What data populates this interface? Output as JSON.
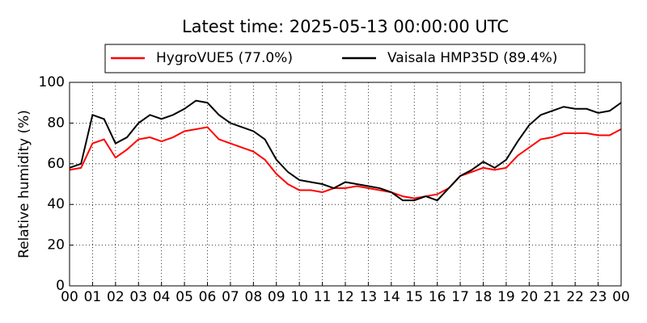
{
  "chart_data": {
    "type": "line",
    "title": "Latest time: 2025-05-13 00:00:00 UTC",
    "y_label": "Relative humidity (%)",
    "x": [
      0,
      0.5,
      1,
      1.5,
      2,
      2.5,
      3,
      3.5,
      4,
      4.5,
      5,
      5.5,
      6,
      6.5,
      7,
      7.5,
      8,
      8.5,
      9,
      9.5,
      10,
      10.5,
      11,
      11.5,
      12,
      12.5,
      13,
      13.5,
      14,
      14.5,
      15,
      15.5,
      16,
      16.5,
      17,
      17.5,
      18,
      18.5,
      19,
      19.5,
      20,
      20.5,
      21,
      21.5,
      22,
      22.5,
      23,
      23.5,
      24
    ],
    "series": [
      {
        "name": "HygroVUE5 (77.0%)",
        "color": "#ff0000",
        "values": [
          57,
          58,
          70,
          72,
          63,
          67,
          72,
          73,
          71,
          73,
          76,
          77,
          78,
          72,
          70,
          68,
          66,
          62,
          55,
          50,
          47,
          47,
          46,
          48,
          48,
          49,
          48,
          47,
          46,
          44,
          43,
          44,
          45,
          48,
          54,
          56,
          58,
          57,
          58,
          64,
          68,
          72,
          73,
          75,
          75,
          75,
          74,
          74,
          77
        ]
      },
      {
        "name": "Vaisala HMP35D (89.4%)",
        "color": "#000000",
        "values": [
          58,
          60,
          84,
          82,
          70,
          73,
          80,
          84,
          82,
          84,
          87,
          91,
          90,
          84,
          80,
          78,
          76,
          72,
          62,
          56,
          52,
          51,
          50,
          48,
          51,
          50,
          49,
          48,
          46,
          42,
          42,
          44,
          42,
          48,
          54,
          57,
          61,
          58,
          62,
          71,
          79,
          84,
          86,
          88,
          87,
          87,
          85,
          86,
          90
        ]
      }
    ],
    "xlim": [
      0,
      24
    ],
    "ylim": [
      0,
      100
    ],
    "xticks": [
      {
        "value": 0,
        "label": "00"
      },
      {
        "value": 1,
        "label": "01"
      },
      {
        "value": 2,
        "label": "02"
      },
      {
        "value": 3,
        "label": "03"
      },
      {
        "value": 4,
        "label": "04"
      },
      {
        "value": 5,
        "label": "05"
      },
      {
        "value": 6,
        "label": "06"
      },
      {
        "value": 7,
        "label": "07"
      },
      {
        "value": 8,
        "label": "08"
      },
      {
        "value": 9,
        "label": "09"
      },
      {
        "value": 10,
        "label": "10"
      },
      {
        "value": 11,
        "label": "11"
      },
      {
        "value": 12,
        "label": "12"
      },
      {
        "value": 13,
        "label": "13"
      },
      {
        "value": 14,
        "label": "14"
      },
      {
        "value": 15,
        "label": "15"
      },
      {
        "value": 16,
        "label": "16"
      },
      {
        "value": 17,
        "label": "17"
      },
      {
        "value": 18,
        "label": "18"
      },
      {
        "value": 19,
        "label": "19"
      },
      {
        "value": 20,
        "label": "20"
      },
      {
        "value": 21,
        "label": "21"
      },
      {
        "value": 22,
        "label": "22"
      },
      {
        "value": 23,
        "label": "23"
      },
      {
        "value": 24,
        "label": "00"
      }
    ],
    "yticks": [
      0,
      20,
      40,
      60,
      80,
      100
    ],
    "grid": true
  }
}
